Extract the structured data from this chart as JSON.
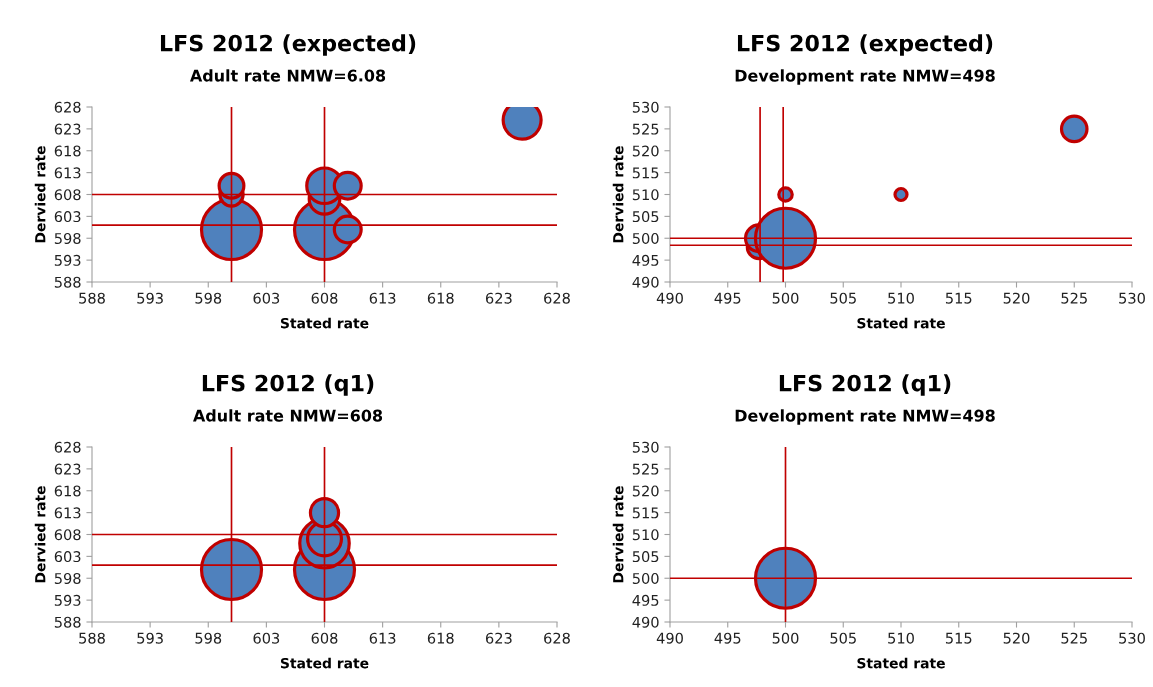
{
  "chart_data": [
    {
      "type": "bubble",
      "title": "LFS 2012 (expected)",
      "subtitle": "Adult rate NMW=6.08",
      "xlabel": "Stated rate",
      "ylabel": "Dervied rate",
      "series": [
        {
          "color": "#4f81bd",
          "x": [
            600,
            600,
            600,
            608,
            608,
            608,
            610,
            610,
            625
          ],
          "values": [
            600,
            608,
            610,
            600,
            607,
            610,
            610,
            600,
            625
          ],
          "sizes": [
            1,
            0.15,
            0.17,
            1,
            0.26,
            0.35,
            0.2,
            0.2,
            0.4
          ]
        }
      ],
      "xlim": [
        588,
        628
      ],
      "xticks": [
        588,
        593,
        598,
        603,
        608,
        613,
        618,
        623,
        628
      ],
      "ylim": [
        588,
        628
      ],
      "yticks": [
        588,
        593,
        598,
        603,
        608,
        613,
        618,
        623,
        628
      ],
      "ref_lines": [
        {
          "axis": "x",
          "value": 600,
          "color": "#c00000"
        },
        {
          "axis": "x",
          "value": 608,
          "color": "#c00000"
        },
        {
          "axis": "y",
          "value": 601,
          "color": "#c00000"
        },
        {
          "axis": "y",
          "value": 608,
          "color": "#c00000"
        }
      ],
      "grid": false,
      "legend": false,
      "marker": "circle"
    },
    {
      "type": "bubble",
      "title": "LFS 2012 (expected)",
      "subtitle": "Development rate NMW=498",
      "xlabel": "Stated rate",
      "ylabel": "Dervied rate",
      "series": [
        {
          "color": "#4f81bd",
          "x": [
            497.7,
            497.7,
            500,
            500,
            510,
            525
          ],
          "values": [
            498,
            500,
            500,
            510,
            510,
            525
          ],
          "sizes": [
            0.15,
            0.2,
            1,
            0.05,
            0.04,
            0.18
          ]
        }
      ],
      "xlim": [
        490,
        530
      ],
      "xticks": [
        490,
        495,
        500,
        505,
        510,
        515,
        520,
        525,
        530
      ],
      "ylim": [
        490,
        530
      ],
      "yticks": [
        490,
        495,
        500,
        505,
        510,
        515,
        520,
        525,
        530
      ],
      "ref_lines": [
        {
          "axis": "x",
          "value": 497.8,
          "color": "#c00000"
        },
        {
          "axis": "x",
          "value": 499.8,
          "color": "#c00000"
        },
        {
          "axis": "y",
          "value": 498.4,
          "color": "#c00000"
        },
        {
          "axis": "y",
          "value": 500,
          "color": "#c00000"
        }
      ],
      "grid": false,
      "legend": false,
      "marker": "circle"
    },
    {
      "type": "bubble",
      "title": "LFS 2012 (q1)",
      "subtitle": "Adult rate NMW=608",
      "xlabel": "Stated rate",
      "ylabel": "Dervied rate",
      "series": [
        {
          "color": "#4f81bd",
          "x": [
            600,
            608,
            608,
            608,
            608
          ],
          "values": [
            600,
            600,
            606,
            607,
            613
          ],
          "sizes": [
            1,
            1,
            0.68,
            0.32,
            0.22
          ]
        }
      ],
      "xlim": [
        588,
        628
      ],
      "xticks": [
        588,
        593,
        598,
        603,
        608,
        613,
        618,
        623,
        628
      ],
      "ylim": [
        588,
        628
      ],
      "yticks": [
        588,
        593,
        598,
        603,
        608,
        613,
        618,
        623,
        628
      ],
      "ref_lines": [
        {
          "axis": "x",
          "value": 600,
          "color": "#c00000"
        },
        {
          "axis": "x",
          "value": 608,
          "color": "#c00000"
        },
        {
          "axis": "y",
          "value": 601,
          "color": "#c00000"
        },
        {
          "axis": "y",
          "value": 608,
          "color": "#c00000"
        }
      ],
      "grid": false,
      "legend": false,
      "marker": "circle"
    },
    {
      "type": "bubble",
      "title": "LFS 2012 (q1)",
      "subtitle": "Development rate NMW=498",
      "xlabel": "Stated rate",
      "ylabel": "Dervied rate",
      "series": [
        {
          "color": "#4f81bd",
          "x": [
            500
          ],
          "values": [
            500
          ],
          "sizes": [
            1
          ]
        }
      ],
      "xlim": [
        490,
        530
      ],
      "xticks": [
        490,
        495,
        500,
        505,
        510,
        515,
        520,
        525,
        530
      ],
      "ylim": [
        490,
        530
      ],
      "yticks": [
        490,
        495,
        500,
        505,
        510,
        515,
        520,
        525,
        530
      ],
      "ref_lines": [
        {
          "axis": "x",
          "value": 500,
          "color": "#c00000"
        },
        {
          "axis": "y",
          "value": 500,
          "color": "#c00000"
        }
      ],
      "grid": false,
      "legend": false,
      "marker": "circle"
    }
  ]
}
